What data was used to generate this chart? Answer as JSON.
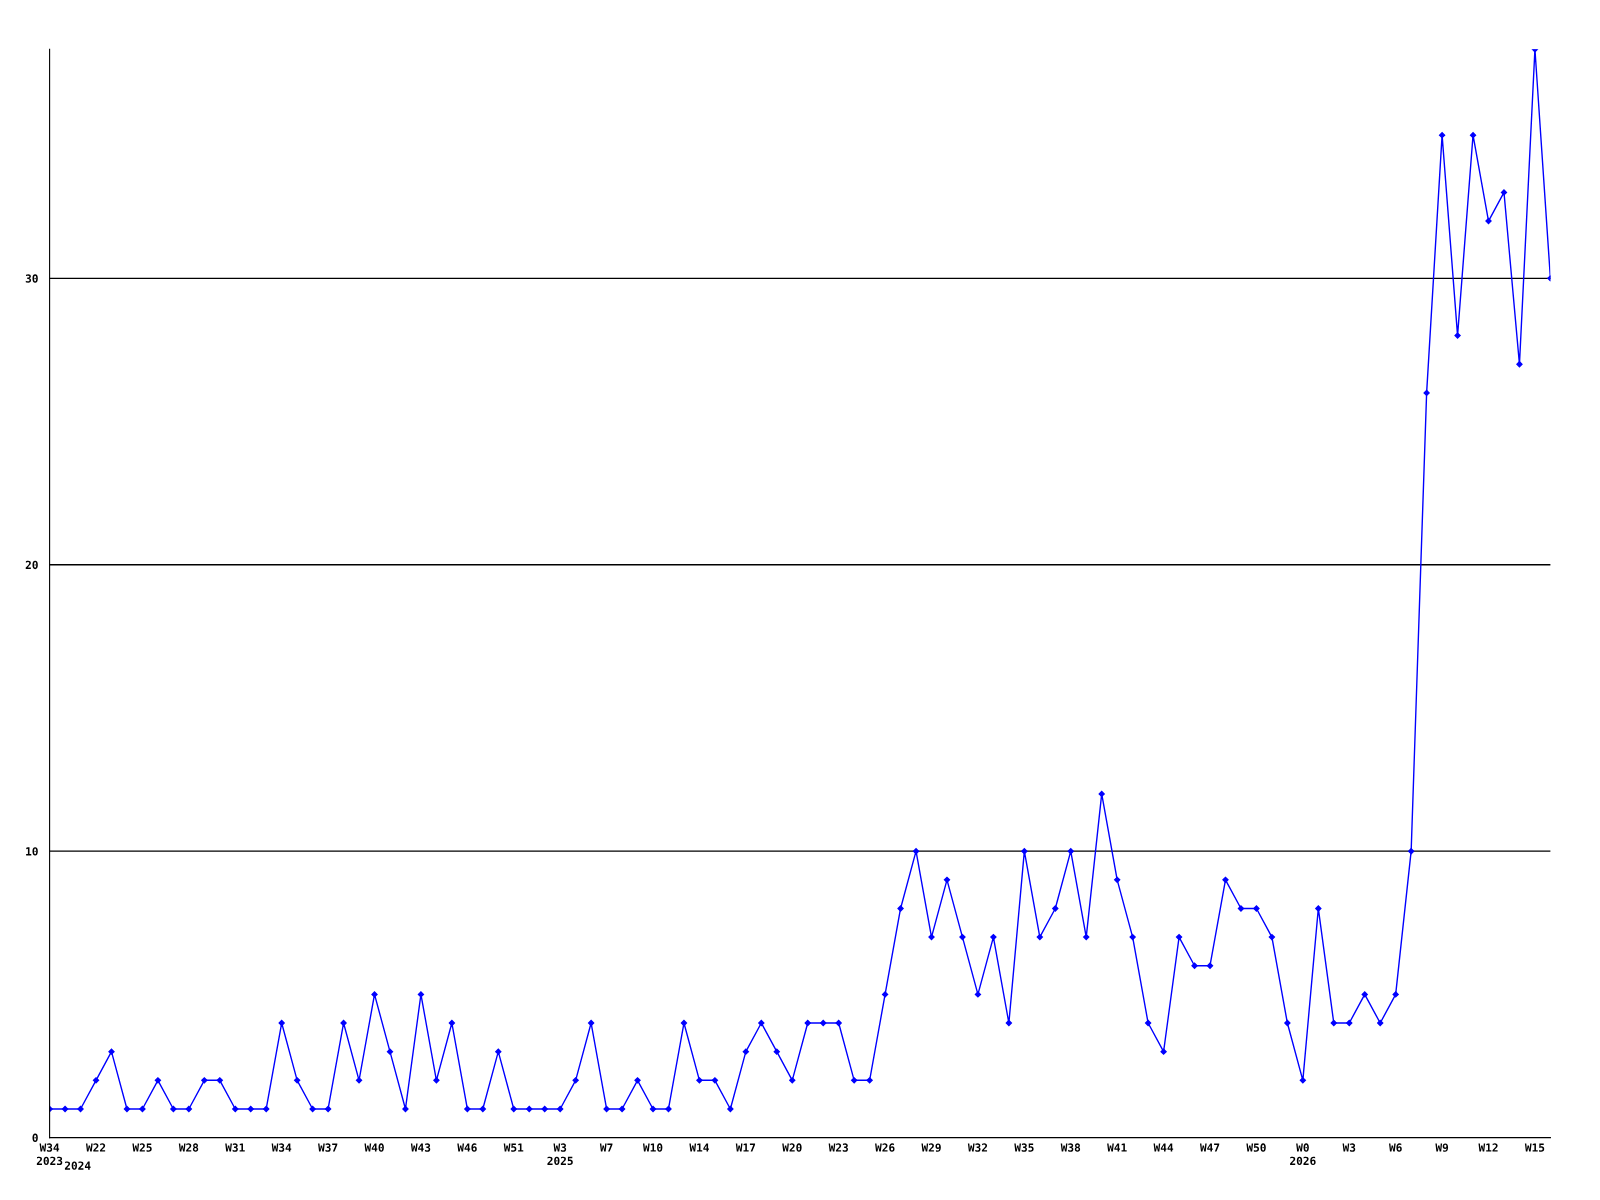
{
  "chart_data": {
    "type": "line",
    "categories": [
      "W34\n2023",
      null,
      null,
      "W22",
      null,
      null,
      "W25",
      null,
      null,
      "W28",
      null,
      null,
      "W31",
      null,
      null,
      "W34",
      null,
      null,
      "W37",
      null,
      null,
      "W40",
      null,
      null,
      "W43",
      null,
      null,
      "W46",
      null,
      null,
      "W51",
      null,
      null,
      "W3\n2025",
      null,
      null,
      "W7",
      null,
      null,
      "W10",
      null,
      null,
      "W14",
      null,
      null,
      "W17",
      null,
      null,
      "W20",
      null,
      null,
      "W23",
      null,
      null,
      "W26",
      null,
      null,
      "W29",
      null,
      null,
      "W32",
      null,
      null,
      "W35",
      null,
      null,
      "W38",
      null,
      null,
      "W41",
      null,
      null,
      "W44",
      null,
      null,
      "W47",
      null,
      null,
      "W50",
      null,
      null,
      "W0\n2026",
      null,
      null,
      "W3",
      null,
      null,
      "W6",
      null,
      null,
      "W9",
      null,
      null,
      "W12",
      null,
      null,
      "W15",
      null
    ],
    "series": [
      {
        "color": "#0000ff",
        "values": [
          1,
          1,
          1,
          2,
          3,
          1,
          1,
          2,
          1,
          1,
          2,
          2,
          1,
          1,
          1,
          4,
          2,
          1,
          1,
          4,
          2,
          5,
          3,
          1,
          5,
          2,
          4,
          1,
          1,
          3,
          1,
          1,
          1,
          1,
          2,
          4,
          1,
          1,
          2,
          1,
          1,
          4,
          2,
          2,
          1,
          3,
          4,
          3,
          2,
          4,
          4,
          4,
          2,
          2,
          5,
          8,
          10,
          7,
          9,
          7,
          5,
          7,
          4,
          10,
          7,
          8,
          10,
          7,
          12,
          9,
          7,
          4,
          3,
          7,
          6,
          6,
          9,
          8,
          8,
          7,
          4,
          2,
          8,
          4,
          4,
          5,
          4,
          5,
          10,
          26,
          35,
          28,
          35,
          32,
          33,
          27,
          38,
          30
        ]
      }
    ],
    "annotations": [
      "2024"
    ],
    "ylim": [
      0,
      38
    ],
    "yticks": [
      0,
      10,
      20,
      30
    ],
    "grid": "y",
    "marker": "diamond",
    "line_style": "solid",
    "legend": false
  }
}
